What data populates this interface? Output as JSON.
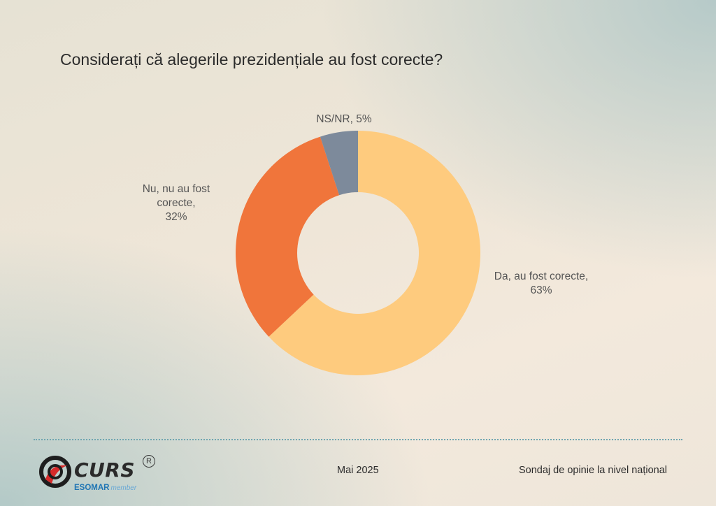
{
  "chart_data": {
    "type": "pie",
    "title": "Considerați că alegerile prezidențiale au fost corecte?",
    "slices": [
      {
        "label_lines": [
          "Da, au fost corecte,",
          "63%"
        ],
        "value": 63,
        "color": "#fecb7e"
      },
      {
        "label_lines": [
          "Nu, nu au fost",
          "corecte,",
          "32%"
        ],
        "value": 32,
        "color": "#f0753b"
      },
      {
        "label_lines": [
          "NS/NR, 5%"
        ],
        "value": 5,
        "color": "#7d8a9b"
      }
    ],
    "donut": true,
    "start_angle_deg": 0,
    "direction": "clockwise"
  },
  "footer": {
    "date": "Mai 2025",
    "note": "Sondaj de opinie la nivel național"
  },
  "logo": {
    "brand": "CURS",
    "registered": "R",
    "esomar": "ESOMAR",
    "esomar_member": "member"
  }
}
